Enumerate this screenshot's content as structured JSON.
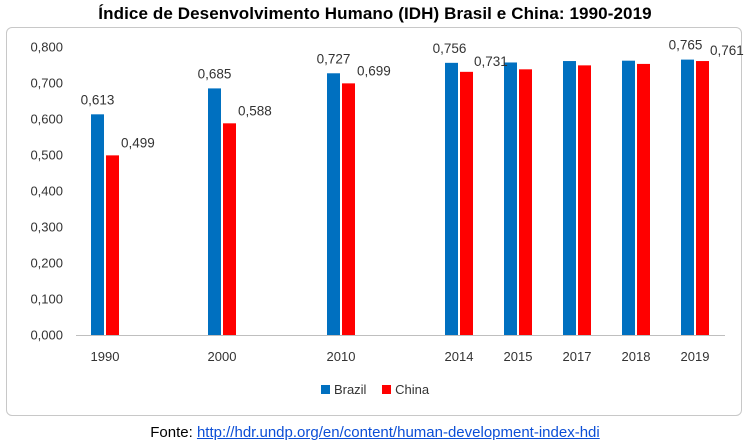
{
  "title": "Índice de Desenvolvimento Humano (IDH) Brasil e China: 1990-2019",
  "source": {
    "prefix": "Fonte: ",
    "link_text": "http://hdr.undp.org/en/content/human-development-index-hdi"
  },
  "chart_data": {
    "type": "bar",
    "title": "Índice de Desenvolvimento Humano (IDH) Brasil e China: 1990-2019",
    "xlabel": "",
    "ylabel": "",
    "categories": [
      "1990",
      "2000",
      "2010",
      "2014",
      "2015",
      "2017",
      "2018",
      "2019"
    ],
    "ylim": [
      0,
      0.8
    ],
    "yticks": [
      "0,000",
      "0,100",
      "0,200",
      "0,300",
      "0,400",
      "0,500",
      "0,600",
      "0,700",
      "0,800"
    ],
    "grid": false,
    "legend_position": "bottom",
    "series": [
      {
        "name": "Brazil",
        "color": "#0070c0",
        "values": [
          0.613,
          0.685,
          0.727,
          0.756,
          0.757,
          0.761,
          0.762,
          0.765
        ],
        "labels": [
          "0,613",
          "0,685",
          "0,727",
          "0,756",
          "",
          "",
          "",
          "0,765"
        ]
      },
      {
        "name": "China",
        "color": "#ff0000",
        "values": [
          0.499,
          0.588,
          0.699,
          0.731,
          0.738,
          0.749,
          0.753,
          0.761
        ],
        "labels": [
          "0,499",
          "0,588",
          "0,699",
          "0,731",
          "",
          "",
          "",
          "0,761"
        ]
      }
    ]
  }
}
